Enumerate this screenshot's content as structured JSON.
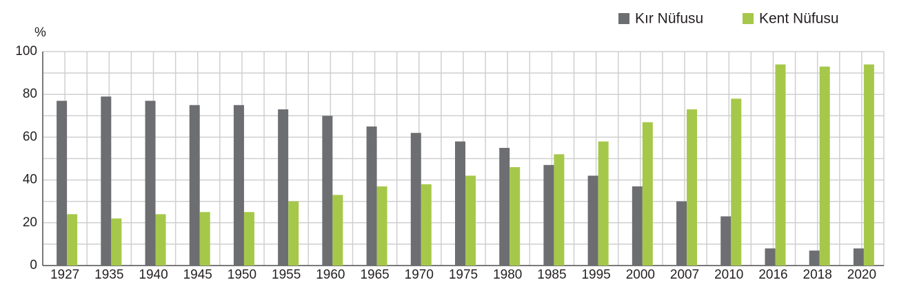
{
  "chart_data": {
    "type": "bar",
    "y_unit": "%",
    "categories": [
      "1927",
      "1935",
      "1940",
      "1945",
      "1950",
      "1955",
      "1960",
      "1965",
      "1970",
      "1975",
      "1980",
      "1985",
      "1995",
      "2000",
      "2007",
      "2010",
      "2016",
      "2018",
      "2020"
    ],
    "series": [
      {
        "name": "Kır Nüfusu",
        "color": "#6d6e71",
        "values": [
          77,
          79,
          77,
          75,
          75,
          73,
          70,
          65,
          62,
          58,
          55,
          47,
          42,
          37,
          30,
          23,
          8,
          7,
          8
        ]
      },
      {
        "name": "Kent Nüfusu",
        "color": "#a6c84a",
        "values": [
          24,
          22,
          24,
          25,
          25,
          30,
          33,
          37,
          38,
          42,
          46,
          52,
          58,
          67,
          73,
          78,
          94,
          93,
          94
        ]
      }
    ],
    "ylim": [
      0,
      100
    ],
    "yticks": [
      0,
      20,
      40,
      60,
      80,
      100
    ],
    "grid": true,
    "legend": "top-right"
  }
}
